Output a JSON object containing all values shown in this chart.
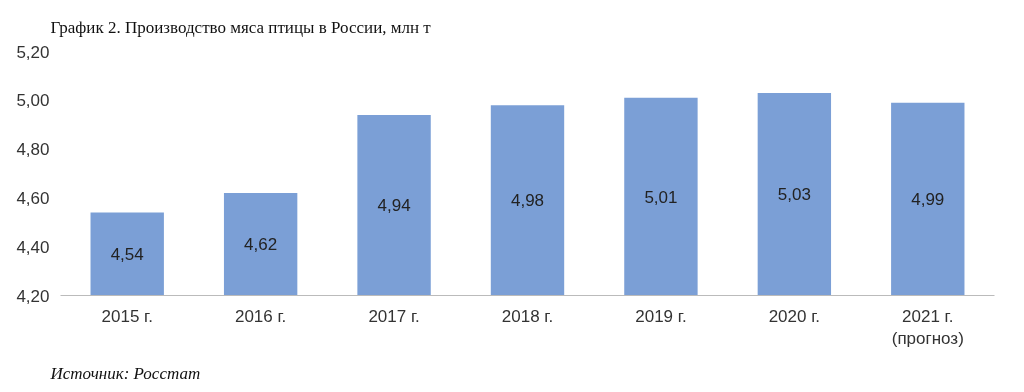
{
  "chart_data": {
    "type": "bar",
    "title": "График 2. Производство мяса птицы в России, млн т",
    "categories": [
      "2015 г.",
      "2016 г.",
      "2017 г.",
      "2018 г.",
      "2019 г.",
      "2020 г.",
      "2021 г.\n(прогноз)"
    ],
    "values": [
      4.54,
      4.62,
      4.94,
      4.98,
      5.01,
      5.03,
      4.99
    ],
    "value_labels": [
      "4,54",
      "4,62",
      "4,94",
      "4,98",
      "5,01",
      "5,03",
      "4,99"
    ],
    "color": "#7b9fd6",
    "ylim": [
      4.2,
      5.2
    ],
    "yticks": [
      {
        "value": 4.2,
        "label": "4,20"
      },
      {
        "value": 4.4,
        "label": "4,40"
      },
      {
        "value": 4.6,
        "label": "4,60"
      },
      {
        "value": 4.8,
        "label": "4,80"
      },
      {
        "value": 5.0,
        "label": "5,00"
      },
      {
        "value": 5.2,
        "label": "5,20"
      }
    ],
    "grid": false,
    "annotations": [
      "Источник: Росстат"
    ]
  }
}
